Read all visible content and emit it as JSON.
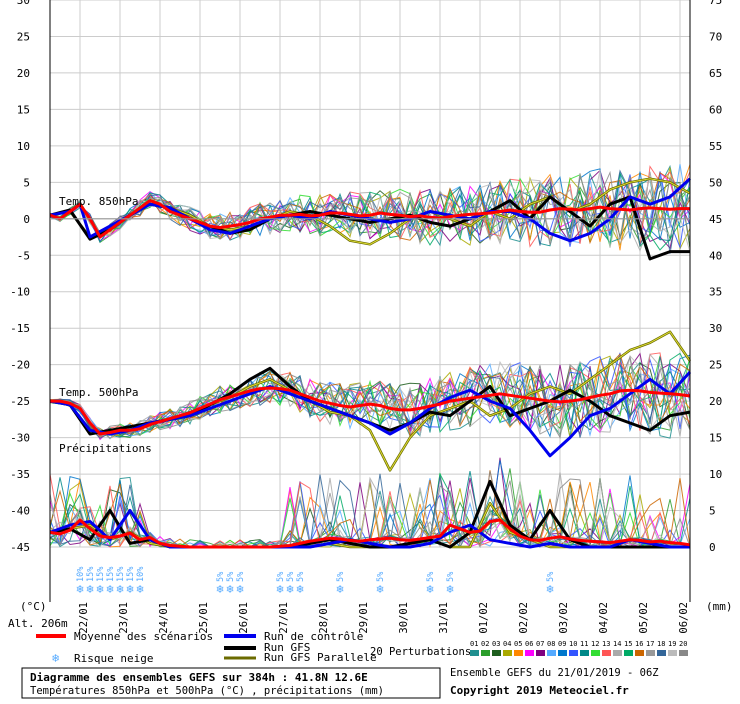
{
  "colors": {
    "mean": "#ff0000",
    "control": "#0000ee",
    "gfs": "#000000",
    "gfs_parallel": "#6b6b00",
    "grid": "#cccccc",
    "snow": "#55aaff",
    "perturbations": [
      "#1f8f8f",
      "#2b9e2b",
      "#1e5e1e",
      "#aaaa00",
      "#ff8800",
      "#ff00ff",
      "#7f007f",
      "#55aaff",
      "#0077cc",
      "#3355ff",
      "#008888",
      "#33dd33",
      "#ff5555",
      "#aaaaaa",
      "#00aa66",
      "#cc6600",
      "#999999",
      "#336699",
      "#bbbbbb",
      "#888888"
    ]
  },
  "chart_data": {
    "type": "line",
    "title": "Diagramme des ensembles GEFS sur 384h : 41.8N 12.6E",
    "subtitle": "Températures 850hPa et 500hPa (°C) , précipitations (mm)",
    "left_unit": "(°C)",
    "right_unit": "(mm)",
    "altitude": "Alt. 206m",
    "left_ticks": [
      30,
      25,
      20,
      15,
      10,
      5,
      0,
      -5,
      -10,
      -15,
      -20,
      -25,
      -30,
      -35,
      -40,
      -45
    ],
    "right_ticks": [
      75,
      70,
      65,
      60,
      55,
      50,
      45,
      40,
      35,
      30,
      25,
      20,
      15,
      10,
      5,
      0
    ],
    "left_range": [
      -45,
      30
    ],
    "x_ticks": [
      "22/01",
      "23/01",
      "24/01",
      "25/01",
      "26/01",
      "27/01",
      "28/01",
      "29/01",
      "30/01",
      "31/01",
      "01/02",
      "02/02",
      "03/02",
      "04/02",
      "05/02",
      "06/02"
    ],
    "x_tick_hours": [
      18,
      42,
      66,
      90,
      114,
      138,
      162,
      186,
      210,
      234,
      258,
      282,
      306,
      330,
      354,
      378
    ],
    "x_range_hours": [
      0,
      384
    ],
    "section_labels": [
      "Temp. 850hPa",
      "Temp. 500hPa",
      "Précipitations"
    ],
    "snow_risk": [
      {
        "h": 18,
        "label": "10%"
      },
      {
        "h": 24,
        "label": "15%"
      },
      {
        "h": 30,
        "label": "15%"
      },
      {
        "h": 36,
        "label": "15%"
      },
      {
        "h": 42,
        "label": "15%"
      },
      {
        "h": 48,
        "label": "15%"
      },
      {
        "h": 54,
        "label": "10%"
      },
      {
        "h": 102,
        "label": "5%"
      },
      {
        "h": 108,
        "label": "5%"
      },
      {
        "h": 114,
        "label": "5%"
      },
      {
        "h": 138,
        "label": "5%"
      },
      {
        "h": 144,
        "label": "5%"
      },
      {
        "h": 150,
        "label": "5%"
      },
      {
        "h": 174,
        "label": "5%"
      },
      {
        "h": 198,
        "label": "5%"
      },
      {
        "h": 228,
        "label": "5%"
      },
      {
        "h": 240,
        "label": "5%"
      },
      {
        "h": 300,
        "label": "5%"
      }
    ],
    "series": [
      {
        "name": "Moyenne des scénarios",
        "group": "t850",
        "color": "#ff0000",
        "x": [
          0,
          6,
          12,
          18,
          24,
          30,
          36,
          42,
          48,
          54,
          60,
          66,
          72,
          78,
          84,
          90,
          96,
          102,
          108,
          114,
          120,
          126,
          132,
          138,
          144,
          150,
          156,
          162,
          168,
          174,
          180,
          186,
          192,
          198,
          204,
          210,
          216,
          222,
          228,
          234,
          240,
          246,
          252,
          258,
          264,
          270,
          276,
          282,
          288,
          294,
          300,
          306,
          312,
          318,
          324,
          330,
          336,
          342,
          348,
          354,
          360,
          366,
          372,
          378,
          384
        ],
        "y": [
          0.5,
          0,
          1,
          2,
          0,
          -2.5,
          -1.5,
          -0.5,
          0.5,
          1.5,
          2.5,
          2,
          1,
          0.5,
          0,
          -0.5,
          -1,
          -1.2,
          -1,
          -0.8,
          -0.5,
          0,
          0.2,
          0.5,
          0.5,
          0.6,
          0.4,
          0.5,
          0.8,
          0.8,
          0.6,
          0.4,
          0.5,
          0.8,
          0.6,
          0.5,
          0.3,
          0.4,
          0.2,
          0.1,
          0.3,
          0.5,
          0.6,
          0.7,
          0.8,
          1,
          1.2,
          1,
          0.9,
          0.9,
          1.2,
          1.4,
          1.3,
          1.2,
          1.4,
          1.6,
          1.4,
          1.3,
          1.2,
          1.4,
          1.5,
          1.4,
          1.3,
          1.4,
          1.4
        ]
      },
      {
        "name": "Moyenne des scénarios",
        "group": "t500",
        "color": "#ff0000",
        "x": [
          0,
          6,
          12,
          18,
          24,
          30,
          36,
          42,
          48,
          54,
          60,
          66,
          72,
          78,
          84,
          90,
          96,
          102,
          108,
          114,
          120,
          126,
          132,
          138,
          144,
          150,
          156,
          162,
          168,
          174,
          180,
          186,
          192,
          198,
          204,
          210,
          216,
          222,
          228,
          234,
          240,
          246,
          252,
          258,
          264,
          270,
          276,
          282,
          288,
          294,
          300,
          306,
          312,
          318,
          324,
          330,
          336,
          342,
          348,
          354,
          360,
          366,
          372,
          378,
          384
        ],
        "y": [
          -25,
          -25,
          -25.3,
          -26,
          -28,
          -29.5,
          -29.3,
          -29,
          -29,
          -28.8,
          -28.2,
          -27.8,
          -27.4,
          -27,
          -26.6,
          -26,
          -25.4,
          -24.8,
          -24.4,
          -24,
          -23.6,
          -23.3,
          -23.2,
          -23.3,
          -23.5,
          -24,
          -24.5,
          -25,
          -25.3,
          -25.6,
          -25.8,
          -25.6,
          -25.4,
          -25.6,
          -26,
          -26.2,
          -26.2,
          -26,
          -25.7,
          -25.4,
          -25,
          -24.8,
          -24.6,
          -24.4,
          -24.2,
          -24,
          -24.2,
          -24.4,
          -24.6,
          -24.8,
          -25,
          -25.1,
          -25,
          -24.8,
          -24.5,
          -24.2,
          -24,
          -23.6,
          -23.5,
          -23.6,
          -23.8,
          -23.9,
          -24,
          -24.1,
          -24.3
        ]
      },
      {
        "name": "Moyenne des scénarios",
        "group": "precip",
        "color": "#ff0000",
        "x": [
          0,
          6,
          12,
          18,
          24,
          30,
          36,
          42,
          48,
          54,
          60,
          66,
          72,
          78,
          84,
          90,
          96,
          102,
          108,
          114,
          120,
          126,
          132,
          138,
          144,
          150,
          156,
          162,
          168,
          174,
          180,
          186,
          192,
          198,
          204,
          210,
          216,
          222,
          228,
          234,
          240,
          246,
          252,
          258,
          264,
          270,
          276,
          282,
          288,
          294,
          300,
          306,
          312,
          318,
          324,
          330,
          336,
          342,
          348,
          354,
          360,
          366,
          372,
          378,
          384
        ],
        "y": [
          2,
          1.8,
          2.3,
          3.7,
          2.5,
          1.5,
          1.3,
          1.5,
          1.9,
          1,
          1.3,
          0.5,
          0.2,
          0.1,
          0,
          0,
          0,
          0,
          0,
          0,
          0,
          0,
          0,
          0.1,
          0.2,
          0.5,
          0.8,
          1,
          1.2,
          1.1,
          0.9,
          0.8,
          1,
          1.1,
          1.2,
          1,
          0.9,
          1.1,
          1.3,
          1.5,
          3,
          2.5,
          2,
          2.2,
          3.5,
          3.7,
          2.5,
          1.5,
          1,
          0.9,
          1.2,
          1.4,
          1.1,
          0.9,
          0.8,
          0.7,
          0.6,
          0.8,
          1,
          0.9,
          0.7,
          0.8,
          0.6,
          0.5,
          0.3
        ]
      },
      {
        "name": "Run de contrôle",
        "group": "t850",
        "color": "#0000ee",
        "x": [
          0,
          12,
          18,
          24,
          36,
          48,
          60,
          72,
          84,
          96,
          108,
          120,
          132,
          144,
          156,
          168,
          180,
          192,
          204,
          216,
          228,
          240,
          252,
          264,
          276,
          288,
          300,
          312,
          324,
          336,
          348,
          360,
          372,
          384
        ],
        "y": [
          0.5,
          1,
          2,
          -2.5,
          -1,
          0.5,
          2,
          1.5,
          0,
          -1.5,
          -2,
          -1,
          0,
          0.5,
          0,
          1,
          0.5,
          0,
          -0.5,
          0,
          1,
          0.5,
          0,
          1,
          1,
          0,
          -2,
          -3,
          -2,
          0,
          3,
          2,
          3,
          5.5
        ]
      },
      {
        "name": "Run de contrôle",
        "group": "t500",
        "color": "#0000ee",
        "x": [
          0,
          12,
          24,
          36,
          48,
          60,
          72,
          84,
          96,
          108,
          120,
          132,
          144,
          156,
          168,
          180,
          192,
          204,
          216,
          228,
          240,
          252,
          264,
          276,
          288,
          300,
          312,
          324,
          336,
          348,
          360,
          372,
          384
        ],
        "y": [
          -25,
          -25.5,
          -29,
          -29.5,
          -29,
          -28,
          -27.5,
          -27,
          -26,
          -25,
          -24,
          -23,
          -24,
          -25,
          -26,
          -27,
          -28,
          -29.5,
          -28,
          -26,
          -24.5,
          -23.5,
          -25,
          -26,
          -29,
          -32.5,
          -30,
          -27,
          -26,
          -24,
          -22,
          -24,
          -21
        ]
      },
      {
        "name": "Run de contrôle",
        "group": "precip",
        "color": "#0000ee",
        "x": [
          0,
          12,
          24,
          36,
          48,
          60,
          72,
          84,
          96,
          108,
          120,
          132,
          144,
          156,
          168,
          180,
          192,
          204,
          216,
          228,
          240,
          252,
          264,
          276,
          288,
          300,
          312,
          324,
          336,
          348,
          360,
          372,
          384
        ],
        "y": [
          2,
          3,
          3.5,
          1,
          5,
          1,
          0,
          0,
          0,
          0,
          0,
          0,
          0,
          0,
          0.5,
          1,
          0.5,
          0,
          0,
          0.5,
          2,
          3,
          1,
          0.5,
          0,
          0.5,
          0,
          0,
          0,
          1,
          0.5,
          0,
          0
        ]
      },
      {
        "name": "Run GFS",
        "group": "t850",
        "color": "#000000",
        "x": [
          0,
          12,
          24,
          36,
          48,
          60,
          72,
          84,
          96,
          108,
          120,
          132,
          144,
          156,
          168,
          180,
          192,
          204,
          216,
          228,
          240,
          252,
          264,
          276,
          288,
          300,
          312,
          324,
          336,
          348,
          360,
          372,
          384
        ],
        "y": [
          0.5,
          1.2,
          -2.8,
          -1.5,
          0.5,
          2,
          1.5,
          0,
          -1,
          -2,
          -1.5,
          0,
          0.5,
          1,
          0.5,
          0,
          -0.5,
          0,
          0.5,
          -0.5,
          -1,
          0,
          1,
          2.5,
          0,
          3,
          1,
          -1,
          2,
          3,
          -5.5,
          -4.5,
          -4.5
        ]
      },
      {
        "name": "Run GFS",
        "group": "t500",
        "color": "#000000",
        "x": [
          0,
          12,
          24,
          36,
          48,
          60,
          72,
          84,
          96,
          108,
          120,
          132,
          144,
          156,
          168,
          180,
          192,
          204,
          216,
          228,
          240,
          252,
          264,
          276,
          288,
          300,
          312,
          324,
          336,
          348,
          360,
          372,
          384
        ],
        "y": [
          -25,
          -25.5,
          -29.5,
          -29,
          -28.5,
          -28,
          -27.5,
          -27,
          -25.5,
          -24,
          -22,
          -20.5,
          -23,
          -25,
          -26,
          -27,
          -28,
          -29,
          -28,
          -26.5,
          -27,
          -25,
          -23,
          -27,
          -26,
          -25,
          -23.5,
          -25,
          -27,
          -28,
          -29,
          -27,
          -26.5
        ]
      },
      {
        "name": "Run GFS",
        "group": "precip",
        "color": "#000000",
        "x": [
          0,
          12,
          24,
          36,
          48,
          60,
          72,
          84,
          96,
          108,
          120,
          132,
          144,
          156,
          168,
          180,
          192,
          204,
          216,
          228,
          240,
          252,
          264,
          276,
          288,
          300,
          312,
          324,
          336,
          348,
          360,
          372,
          384
        ],
        "y": [
          2,
          2.5,
          1,
          5,
          0.5,
          1,
          0,
          0,
          0,
          0,
          0,
          0,
          0,
          0.5,
          1,
          0.5,
          0,
          0,
          0.5,
          1,
          0,
          2,
          9,
          3,
          1,
          5,
          1,
          0,
          0,
          0,
          0,
          0,
          0
        ]
      },
      {
        "name": "Run GFS Parallele",
        "group": "t850",
        "color": "#6b6b00",
        "x": [
          0,
          12,
          24,
          36,
          48,
          60,
          72,
          84,
          96,
          108,
          120,
          132,
          144,
          156,
          168,
          180,
          192,
          204,
          216,
          228,
          240,
          252,
          264,
          276,
          288,
          300,
          312,
          324,
          336,
          348,
          360,
          372,
          384
        ],
        "y": [
          0.5,
          1,
          -2.5,
          -1,
          0.5,
          2,
          1.5,
          0.5,
          -1,
          -1.5,
          -1,
          0,
          1,
          0.5,
          -1,
          -3,
          -3.5,
          -2,
          0,
          1,
          0,
          -1,
          1,
          0,
          2,
          3,
          1,
          2,
          4,
          5,
          5.5,
          5,
          3.5
        ]
      },
      {
        "name": "Run GFS Parallele",
        "group": "t500",
        "color": "#6b6b00",
        "x": [
          0,
          12,
          24,
          36,
          48,
          60,
          72,
          84,
          96,
          108,
          120,
          132,
          144,
          156,
          168,
          180,
          192,
          204,
          216,
          228,
          240,
          252,
          264,
          276,
          288,
          300,
          312,
          324,
          336,
          348,
          360,
          372,
          384
        ],
        "y": [
          -25,
          -25.5,
          -29,
          -29.5,
          -29,
          -28,
          -27.5,
          -26.5,
          -25.5,
          -24.5,
          -23,
          -22,
          -23.5,
          -25,
          -26.5,
          -27,
          -29,
          -34.5,
          -30,
          -27,
          -26,
          -25,
          -27,
          -26,
          -24,
          -23,
          -24,
          -22,
          -20,
          -18,
          -17,
          -15.5,
          -19.5
        ]
      },
      {
        "name": "Run GFS Parallele",
        "group": "precip",
        "color": "#6b6b00",
        "x": [
          0,
          12,
          24,
          36,
          48,
          60,
          72,
          84,
          96,
          108,
          120,
          132,
          144,
          156,
          168,
          180,
          192,
          204,
          216,
          228,
          240,
          252,
          264,
          276,
          288,
          300,
          312,
          324,
          336,
          348,
          360,
          372,
          384
        ],
        "y": [
          2,
          2.5,
          3,
          1,
          2,
          0.5,
          0,
          0,
          0,
          0,
          0,
          0,
          0,
          0,
          0.5,
          0,
          0,
          0,
          0.5,
          1,
          0,
          0,
          6,
          2,
          1,
          0,
          0,
          0,
          0,
          0,
          0,
          0,
          0
        ]
      }
    ]
  },
  "legend": {
    "mean": "Moyenne des scénarios",
    "control": "Run de contrôle",
    "gfs": "Run GFS",
    "gfs_parallel": "Run GFS Parallele",
    "snow": "Risque neige",
    "perturbations": "20 Perturbations",
    "perturbation_ids": [
      "01",
      "02",
      "03",
      "04",
      "05",
      "06",
      "07",
      "08",
      "09",
      "10",
      "11",
      "12",
      "13",
      "14",
      "15",
      "16",
      "17",
      "18",
      "19",
      "20"
    ]
  },
  "footer": {
    "title": "Diagramme des ensembles GEFS sur 384h : 41.8N 12.6E",
    "subtitle": "Températures 850hPa et 500hPa (°C) , précipitations (mm)",
    "run_info": "Ensemble GEFS du 21/01/2019 - 06Z",
    "copyright": "Copyright 2019 Meteociel.fr"
  }
}
